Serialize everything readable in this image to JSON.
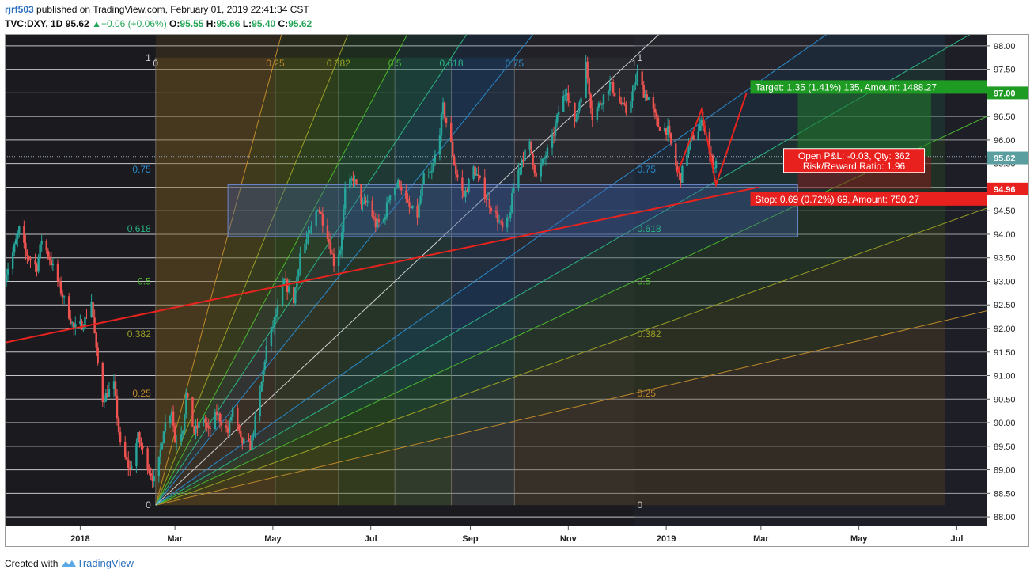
{
  "header": {
    "user": "rjrf503",
    "published_text": "published on TradingView.com, February 01, 2019 22:41:34 CST",
    "symbol": "TVC:DXY, 1D",
    "last": "95.62",
    "change": "+0.06 (+0.06%)",
    "o_label": "O:",
    "o_value": "95.55",
    "h_label": "H:",
    "h_value": "95.66",
    "l_label": "L:",
    "l_value": "95.40",
    "c_label": "C:",
    "c_value": "95.62"
  },
  "footer": {
    "created_with": "Created with",
    "brand": "TradingView"
  },
  "colors": {
    "up": "#26a69a",
    "down": "#ef5350",
    "trendline": "#e8231e",
    "target_green": "#1e9b22",
    "stop_red": "#e8201e",
    "price_marker": "#5a9ea0"
  },
  "chart_data": {
    "type": "candlestick",
    "y_axis": {
      "ylim": [
        87.8,
        98.25
      ],
      "tick_labels": [
        "98.00",
        "97.50",
        "97.00",
        "96.50",
        "96.00",
        "95.50",
        "95.00",
        "94.50",
        "94.00",
        "93.50",
        "93.00",
        "92.50",
        "92.00",
        "91.50",
        "91.00",
        "90.50",
        "90.00",
        "89.50",
        "89.00",
        "88.50",
        "88.00"
      ],
      "tick_values": [
        98.0,
        97.5,
        97.0,
        96.5,
        96.0,
        95.5,
        95.0,
        94.5,
        94.0,
        93.5,
        93.0,
        92.5,
        92.0,
        91.5,
        91.0,
        90.5,
        90.0,
        89.5,
        89.0,
        88.5,
        88.0
      ]
    },
    "x_axis": {
      "start_date": "2017-11-15",
      "end_date": "2019-07-20",
      "tick_labels": [
        {
          "label": "2018",
          "date": "2018-01-01"
        },
        {
          "label": "Mar",
          "date": "2018-03-01"
        },
        {
          "label": "May",
          "date": "2018-05-01"
        },
        {
          "label": "Jul",
          "date": "2018-07-01"
        },
        {
          "label": "Sep",
          "date": "2018-09-01"
        },
        {
          "label": "Nov",
          "date": "2018-11-01"
        },
        {
          "label": "2019",
          "date": "2019-01-01"
        },
        {
          "label": "Mar",
          "date": "2019-03-01"
        },
        {
          "label": "May",
          "date": "2019-05-01"
        },
        {
          "label": "Jul",
          "date": "2019-07-01"
        }
      ]
    },
    "price_path": [
      [
        "2017-11-15",
        93.1
      ],
      [
        "2017-11-20",
        93.6
      ],
      [
        "2017-11-24",
        94.1
      ],
      [
        "2017-11-28",
        93.6
      ],
      [
        "2017-12-05",
        93.3
      ],
      [
        "2017-12-08",
        93.9
      ],
      [
        "2017-12-14",
        93.4
      ],
      [
        "2017-12-20",
        92.8
      ],
      [
        "2017-12-28",
        92.0
      ],
      [
        "2018-01-03",
        92.1
      ],
      [
        "2018-01-08",
        92.6
      ],
      [
        "2018-01-11",
        91.5
      ],
      [
        "2018-01-15",
        90.5
      ],
      [
        "2018-01-22",
        90.8
      ],
      [
        "2018-01-26",
        89.5
      ],
      [
        "2018-02-01",
        89.0
      ],
      [
        "2018-02-06",
        89.7
      ],
      [
        "2018-02-13",
        89.0
      ],
      [
        "2018-02-17",
        88.7
      ],
      [
        "2018-02-22",
        89.9
      ],
      [
        "2018-02-27",
        90.3
      ],
      [
        "2018-03-01",
        89.6
      ],
      [
        "2018-03-06",
        89.9
      ],
      [
        "2018-03-08",
        90.6
      ],
      [
        "2018-03-13",
        89.8
      ],
      [
        "2018-03-19",
        90.1
      ],
      [
        "2018-03-22",
        89.8
      ],
      [
        "2018-03-27",
        90.2
      ],
      [
        "2018-04-03",
        89.8
      ],
      [
        "2018-04-06",
        90.3
      ],
      [
        "2018-04-11",
        89.6
      ],
      [
        "2018-04-17",
        89.5
      ],
      [
        "2018-04-23",
        90.6
      ],
      [
        "2018-04-27",
        91.6
      ],
      [
        "2018-05-04",
        92.4
      ],
      [
        "2018-05-08",
        93.0
      ],
      [
        "2018-05-14",
        92.6
      ],
      [
        "2018-05-18",
        93.6
      ],
      [
        "2018-05-24",
        94.0
      ],
      [
        "2018-05-29",
        94.6
      ],
      [
        "2018-06-04",
        94.0
      ],
      [
        "2018-06-08",
        93.4
      ],
      [
        "2018-06-12",
        93.7
      ],
      [
        "2018-06-15",
        94.9
      ],
      [
        "2018-06-20",
        95.2
      ],
      [
        "2018-06-26",
        94.6
      ],
      [
        "2018-06-29",
        94.7
      ],
      [
        "2018-07-04",
        94.2
      ],
      [
        "2018-07-09",
        94.3
      ],
      [
        "2018-07-13",
        94.9
      ],
      [
        "2018-07-19",
        95.1
      ],
      [
        "2018-07-24",
        94.6
      ],
      [
        "2018-07-30",
        94.4
      ],
      [
        "2018-08-03",
        95.2
      ],
      [
        "2018-08-08",
        95.3
      ],
      [
        "2018-08-13",
        96.2
      ],
      [
        "2018-08-15",
        96.7
      ],
      [
        "2018-08-20",
        95.9
      ],
      [
        "2018-08-23",
        95.3
      ],
      [
        "2018-08-28",
        94.8
      ],
      [
        "2018-09-03",
        95.4
      ],
      [
        "2018-09-07",
        95.1
      ],
      [
        "2018-09-12",
        94.7
      ],
      [
        "2018-09-17",
        94.4
      ],
      [
        "2018-09-21",
        94.1
      ],
      [
        "2018-09-25",
        94.3
      ],
      [
        "2018-09-28",
        95.0
      ],
      [
        "2018-10-03",
        95.6
      ],
      [
        "2018-10-08",
        95.9
      ],
      [
        "2018-10-12",
        95.2
      ],
      [
        "2018-10-17",
        95.6
      ],
      [
        "2018-10-22",
        96.0
      ],
      [
        "2018-10-26",
        96.6
      ],
      [
        "2018-10-31",
        97.1
      ],
      [
        "2018-11-05",
        96.3
      ],
      [
        "2018-11-09",
        97.0
      ],
      [
        "2018-11-12",
        97.6
      ],
      [
        "2018-11-16",
        96.5
      ],
      [
        "2018-11-21",
        96.8
      ],
      [
        "2018-11-27",
        97.2
      ],
      [
        "2018-12-03",
        96.8
      ],
      [
        "2018-12-07",
        96.6
      ],
      [
        "2018-12-12",
        97.1
      ],
      [
        "2018-12-14",
        97.4
      ],
      [
        "2018-12-18",
        97.0
      ],
      [
        "2018-12-21",
        96.9
      ],
      [
        "2018-12-27",
        96.3
      ],
      [
        "2019-01-02",
        96.2
      ],
      [
        "2019-01-08",
        95.3
      ],
      [
        "2019-01-10",
        95.2
      ],
      [
        "2019-01-15",
        95.9
      ],
      [
        "2019-01-22",
        96.3
      ],
      [
        "2019-01-24",
        96.4
      ],
      [
        "2019-01-28",
        95.7
      ],
      [
        "2019-01-31",
        95.4
      ],
      [
        "2019-02-01",
        95.62
      ]
    ],
    "last_price": 95.62,
    "prev_close_marker": 95.65,
    "stop_marker": 94.96,
    "target_marker": 97.0,
    "gann_box": {
      "start": [
        "2018-02-17",
        88.25
      ],
      "end": [
        "2018-12-12",
        97.75
      ],
      "levels": [
        0,
        0.25,
        0.382,
        0.5,
        0.618,
        0.75,
        1
      ],
      "level_labels": [
        "0",
        "0.25",
        "0.382",
        "0.5",
        "0.618",
        "0.75",
        "1"
      ]
    },
    "trendline": {
      "from": [
        "2017-11-15",
        91.7
      ],
      "to": [
        "2019-02-28",
        95.0
      ]
    },
    "forecast_path": [
      [
        "2019-01-08",
        95.3
      ],
      [
        "2019-01-23",
        96.65
      ],
      [
        "2019-02-01",
        95.05
      ],
      [
        "2019-02-20",
        97.0
      ]
    ],
    "consolidation_box": {
      "from": [
        "2018-04-03",
        93.95
      ],
      "to": [
        "2019-03-24",
        95.05
      ]
    },
    "long_position": {
      "entry": 95.65,
      "target": 97.0,
      "stop": 94.96,
      "from_date": "2019-03-24",
      "to_date": "2019-06-15",
      "target_label": "Target: 1.35 (1.41%) 135, Amount: 1488.27",
      "stop_label": "Stop: 0.69 (0.72%) 69, Amount: 750.27",
      "pnl_label": "Open P&L: -0.03, Qty: 362",
      "rr_label": "Risk/Reward Ratio: 1.96"
    }
  }
}
